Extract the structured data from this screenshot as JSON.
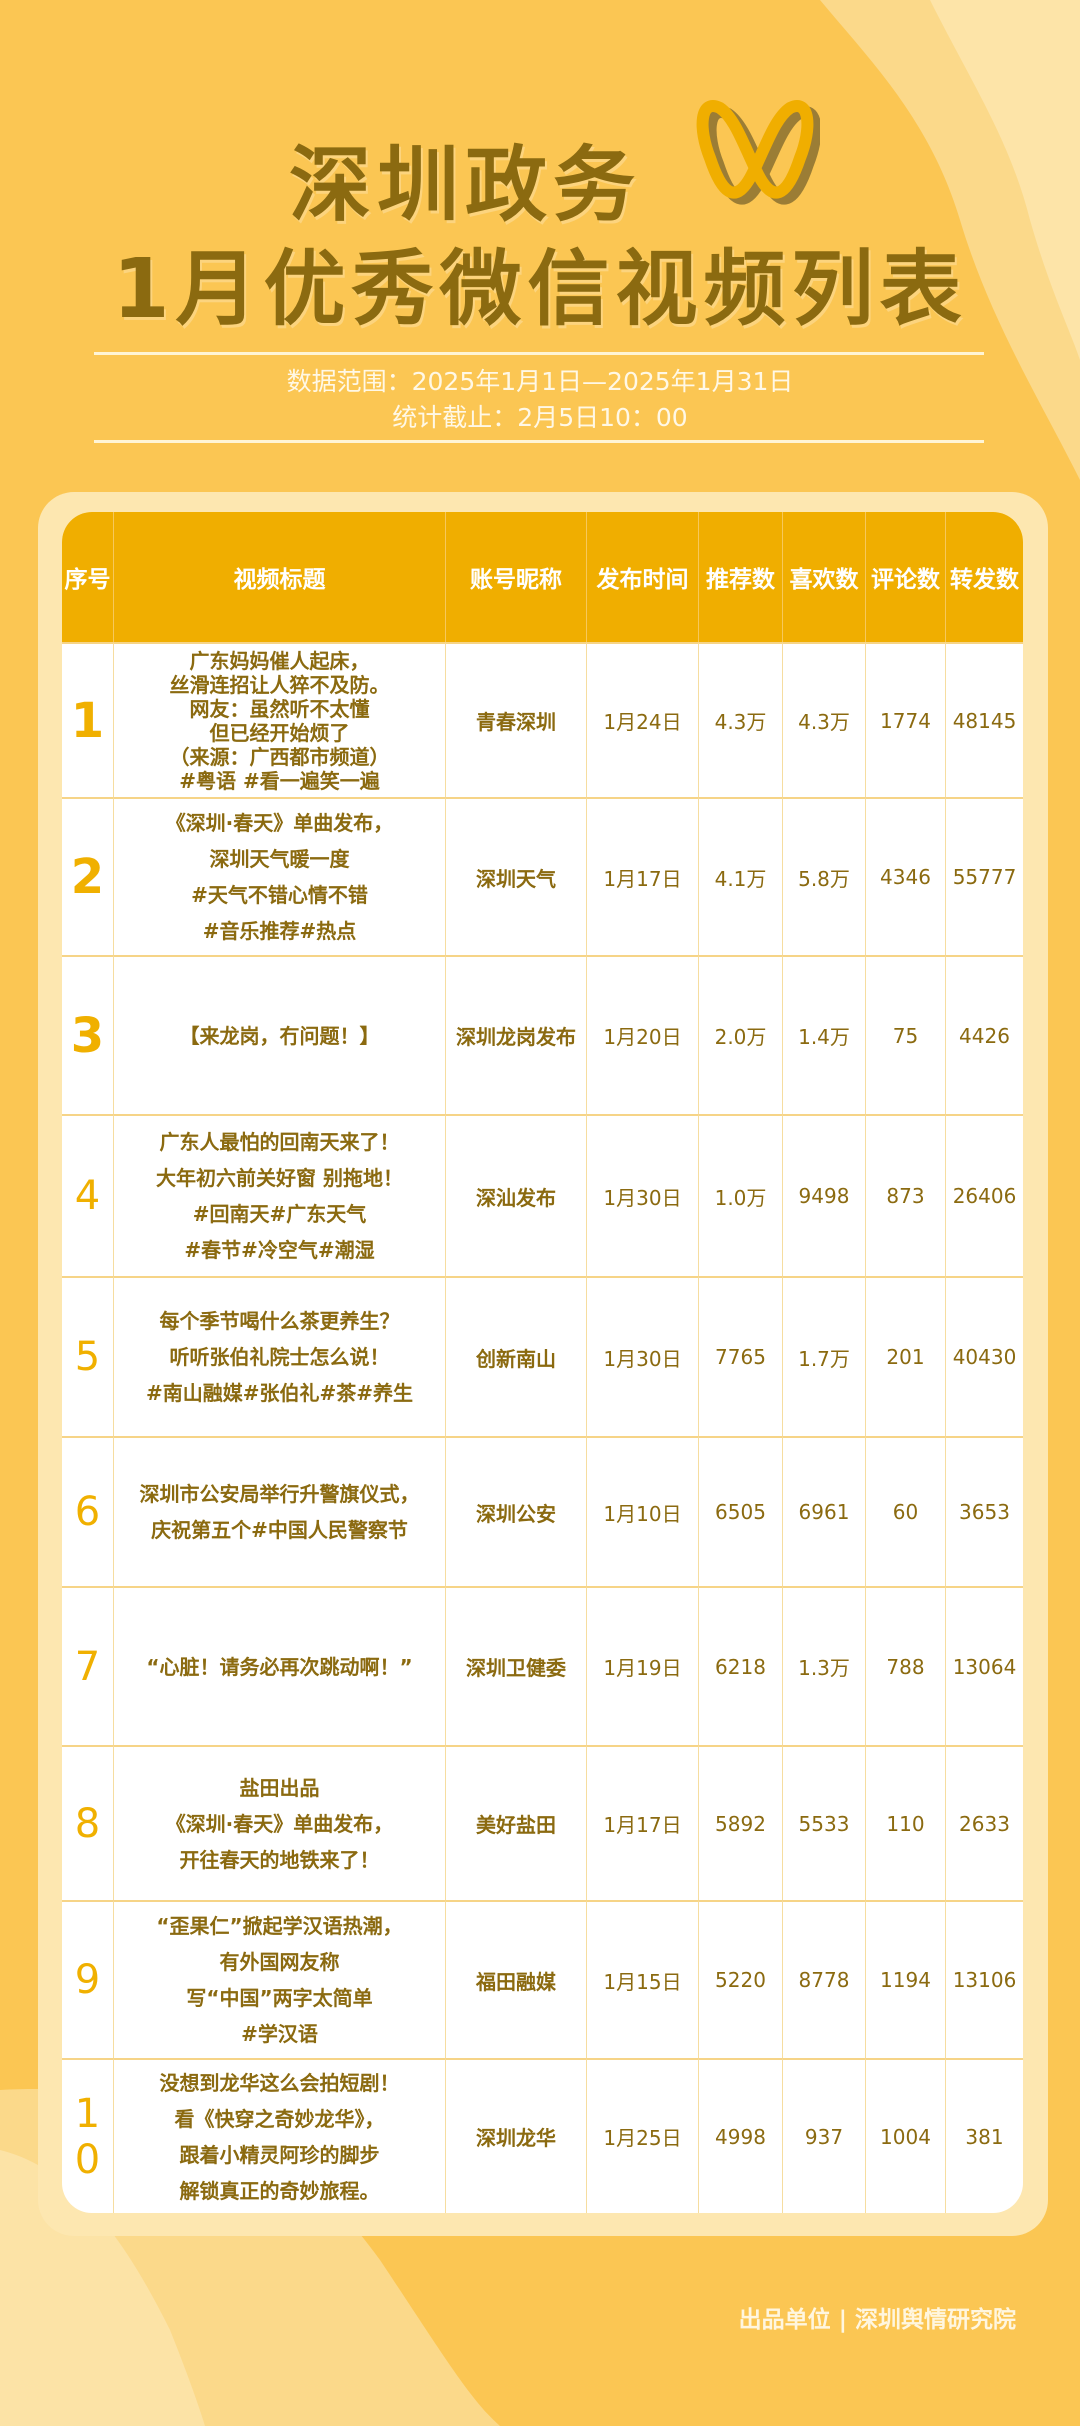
{
  "header": {
    "title_line1": "深圳政务",
    "title_line2": "1月优秀微信视频列表",
    "data_range": "数据范围：2025年1月1日—2025年1月31日",
    "cutoff": "统计截止：2月5日10：00",
    "logo_icon": "wechat-channels-logo"
  },
  "colors": {
    "background": "#fbc653",
    "header": "#f0ae00",
    "text": "#8b6a10",
    "rank": "#f0b000"
  },
  "table": {
    "columns": [
      "序号",
      "视频标题",
      "账号昵称",
      "发布时间",
      "推荐数",
      "喜欢数",
      "评论数",
      "转发数"
    ],
    "rows": [
      {
        "rank": "1",
        "title": "广东妈妈催人起床，\n丝滑连招让人猝不及防。\n网友：虽然听不太懂\n但已经开始烦了\n（来源：广西都市频道）\n#粤语 #看一遍笑一遍",
        "account": "青春深圳",
        "date": "1月24日",
        "recommend": "4.3万",
        "likes": "4.3万",
        "comments": "1774",
        "shares": "48145"
      },
      {
        "rank": "2",
        "title": "《深圳·春天》单曲发布，\n深圳天气暖一度\n#天气不错心情不错\n#音乐推荐#热点",
        "account": "深圳天气",
        "date": "1月17日",
        "recommend": "4.1万",
        "likes": "5.8万",
        "comments": "4346",
        "shares": "55777"
      },
      {
        "rank": "3",
        "title": "【来龙岗，冇问题！】",
        "account": "深圳龙岗发布",
        "date": "1月20日",
        "recommend": "2.0万",
        "likes": "1.4万",
        "comments": "75",
        "shares": "4426"
      },
      {
        "rank": "4",
        "title": "广东人最怕的回南天来了！\n大年初六前关好窗 别拖地！\n#回南天#广东天气\n#春节#冷空气#潮湿",
        "account": "深汕发布",
        "date": "1月30日",
        "recommend": "1.0万",
        "likes": "9498",
        "comments": "873",
        "shares": "26406"
      },
      {
        "rank": "5",
        "title": "每个季节喝什么茶更养生？\n听听张伯礼院士怎么说！\n#南山融媒#张伯礼#茶#养生",
        "account": "创新南山",
        "date": "1月30日",
        "recommend": "7765",
        "likes": "1.7万",
        "comments": "201",
        "shares": "40430"
      },
      {
        "rank": "6",
        "title": "深圳市公安局举行升警旗仪式，\n庆祝第五个#中国人民警察节",
        "account": "深圳公安",
        "date": "1月10日",
        "recommend": "6505",
        "likes": "6961",
        "comments": "60",
        "shares": "3653"
      },
      {
        "rank": "7",
        "title": "“心脏！请务必再次跳动啊！”",
        "account": "深圳卫健委",
        "date": "1月19日",
        "recommend": "6218",
        "likes": "1.3万",
        "comments": "788",
        "shares": "13064"
      },
      {
        "rank": "8",
        "title": "盐田出品\n《深圳·春天》单曲发布，\n开往春天的地铁来了！",
        "account": "美好盐田",
        "date": "1月17日",
        "recommend": "5892",
        "likes": "5533",
        "comments": "110",
        "shares": "2633"
      },
      {
        "rank": "9",
        "title": "“歪果仁”掀起学汉语热潮，\n有外国网友称\n写“中国”两字太简单\n#学汉语",
        "account": "福田融媒",
        "date": "1月15日",
        "recommend": "5220",
        "likes": "8778",
        "comments": "1194",
        "shares": "13106"
      },
      {
        "rank": "10",
        "title": "没想到龙华这么会拍短剧！\n看《快穿之奇妙龙华》，\n跟着小精灵阿珍的脚步\n解锁真正的奇妙旅程。",
        "account": "深圳龙华",
        "date": "1月25日",
        "recommend": "4998",
        "likes": "937",
        "comments": "1004",
        "shares": "381"
      }
    ]
  },
  "footer": {
    "producer": "出品单位 | 深圳舆情研究院"
  }
}
